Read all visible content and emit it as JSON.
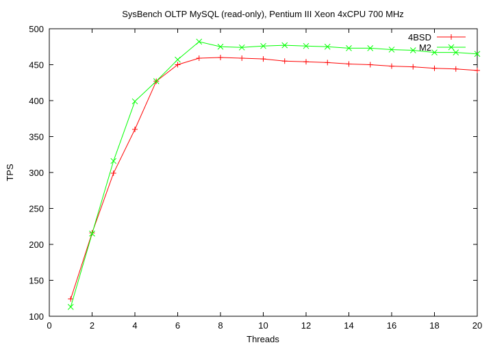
{
  "chart_data": {
    "type": "line",
    "title": "SysBench OLTP MySQL (read-only), Pentium III Xeon 4xCPU 700 MHz",
    "xlabel": "Threads",
    "ylabel": "TPS",
    "xlim": [
      0,
      20
    ],
    "ylim": [
      100,
      500
    ],
    "xticks": [
      0,
      2,
      4,
      6,
      8,
      10,
      12,
      14,
      16,
      18,
      20
    ],
    "yticks": [
      100,
      150,
      200,
      250,
      300,
      350,
      400,
      450,
      500
    ],
    "grid": false,
    "legend_position": "top-right",
    "x": [
      1,
      2,
      3,
      4,
      5,
      6,
      7,
      8,
      9,
      10,
      11,
      12,
      13,
      14,
      15,
      16,
      17,
      18,
      19,
      20
    ],
    "series": [
      {
        "name": "4BSD",
        "color": "#ff0000",
        "marker": "plus",
        "values": [
          124,
          216,
          299,
          360,
          427,
          450,
          459,
          460,
          459,
          458,
          455,
          454,
          453,
          451,
          450,
          448,
          447,
          445,
          444,
          442
        ]
      },
      {
        "name": "M2",
        "color": "#00ff00",
        "marker": "cross",
        "values": [
          113,
          215,
          316,
          399,
          427,
          457,
          482,
          475,
          474,
          476,
          477,
          476,
          475,
          473,
          473,
          471,
          470,
          467,
          467,
          465
        ]
      }
    ]
  }
}
